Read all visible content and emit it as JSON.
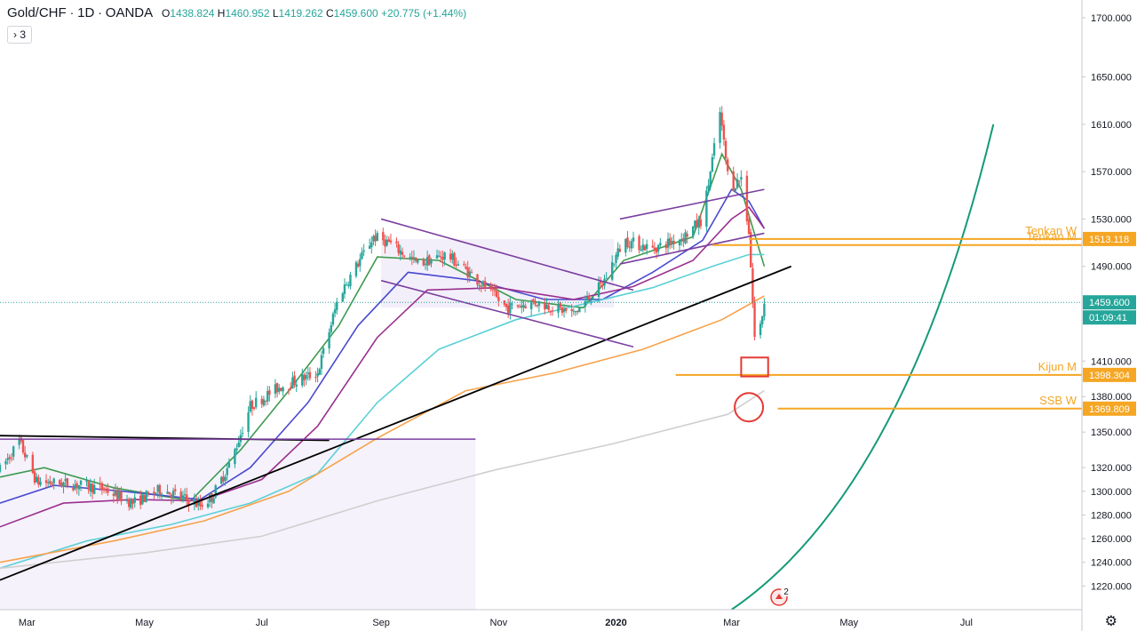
{
  "header": {
    "symbol": "Gold/CHF",
    "interval": "1D",
    "source": "OANDA",
    "open_label": "O",
    "open": "1438.824",
    "high_label": "H",
    "high": "1460.952",
    "low_label": "L",
    "low": "1419.262",
    "close_label": "C",
    "close": "1459.600",
    "change": "+20.775 (+1.44%)"
  },
  "indicator_toggle": {
    "arrow": "›",
    "count": "3"
  },
  "badge_count": "2",
  "colors": {
    "up": "#26a69a",
    "down": "#ef5350",
    "ma_green": "#3d9a4f",
    "ma_blue": "#4a4ad0",
    "ma_purple": "#9a2f8f",
    "ma_cyan": "#5bd0d6",
    "ma_orange": "#f7a24a",
    "ma_gray": "#cfcfcf",
    "level_orange": "#f5a623",
    "parabola": "#159a77",
    "channel": "#7b3fa0",
    "trend": "#000000",
    "marker": "#e53935",
    "price_line": "#26a69a"
  },
  "chart_data": {
    "type": "candlestick",
    "y_axis": {
      "min": 1200,
      "max": 1715,
      "ticks": [
        1700,
        1650,
        1610,
        1570,
        1530,
        1490,
        1460,
        1410,
        1380,
        1350,
        1320,
        1300,
        1280,
        1260,
        1240,
        1220
      ],
      "tick_labels": [
        "1700.000",
        "1650.000",
        "1610.000",
        "1570.000",
        "1530.000",
        "1490.000",
        "",
        "1410.000",
        "1380.000",
        "1350.000",
        "1320.000",
        "1300.000",
        "1280.000",
        "1260.000",
        "1240.000",
        "1220.000"
      ]
    },
    "x_axis": {
      "start": "2019-02-15",
      "end": "2020-08-30",
      "ticks": [
        {
          "date": "2019-03-01",
          "label": "Mar"
        },
        {
          "date": "2019-05-01",
          "label": "May"
        },
        {
          "date": "2019-07-01",
          "label": "Jul"
        },
        {
          "date": "2019-09-01",
          "label": "Sep"
        },
        {
          "date": "2019-11-01",
          "label": "Nov"
        },
        {
          "date": "2020-01-01",
          "label": "2020"
        },
        {
          "date": "2020-03-01",
          "label": "Mar"
        },
        {
          "date": "2020-05-01",
          "label": "May"
        },
        {
          "date": "2020-07-01",
          "label": "Jul"
        }
      ]
    },
    "price_path": [
      [
        "2019-02-15",
        1318
      ],
      [
        "2019-02-25",
        1342
      ],
      [
        "2019-03-06",
        1308
      ],
      [
        "2019-03-25",
        1306
      ],
      [
        "2019-04-10",
        1302
      ],
      [
        "2019-04-25",
        1290
      ],
      [
        "2019-05-10",
        1302
      ],
      [
        "2019-05-30",
        1288
      ],
      [
        "2019-06-05",
        1295
      ],
      [
        "2019-06-15",
        1325
      ],
      [
        "2019-06-25",
        1372
      ],
      [
        "2019-07-10",
        1388
      ],
      [
        "2019-07-30",
        1400
      ],
      [
        "2019-08-10",
        1465
      ],
      [
        "2019-08-28",
        1515
      ],
      [
        "2019-09-05",
        1510
      ],
      [
        "2019-09-20",
        1492
      ],
      [
        "2019-10-05",
        1500
      ],
      [
        "2019-10-20",
        1480
      ],
      [
        "2019-11-05",
        1455
      ],
      [
        "2019-11-20",
        1460
      ],
      [
        "2019-12-10",
        1450
      ],
      [
        "2019-12-25",
        1475
      ],
      [
        "2020-01-05",
        1512
      ],
      [
        "2020-01-20",
        1505
      ],
      [
        "2020-02-05",
        1515
      ],
      [
        "2020-02-15",
        1530
      ],
      [
        "2020-02-24",
        1620
      ],
      [
        "2020-02-29",
        1555
      ],
      [
        "2020-03-06",
        1565
      ],
      [
        "2020-03-10",
        1520
      ],
      [
        "2020-03-13",
        1430
      ],
      [
        "2020-03-16",
        1440
      ],
      [
        "2020-03-18",
        1459.6
      ]
    ],
    "moving_averages": [
      {
        "color_key": "ma_green",
        "points": [
          [
            "2019-02-15",
            1312
          ],
          [
            "2019-03-10",
            1320
          ],
          [
            "2019-04-15",
            1303
          ],
          [
            "2019-05-25",
            1292
          ],
          [
            "2019-06-20",
            1335
          ],
          [
            "2019-07-15",
            1385
          ],
          [
            "2019-08-10",
            1440
          ],
          [
            "2019-08-30",
            1498
          ],
          [
            "2019-10-01",
            1495
          ],
          [
            "2019-11-10",
            1462
          ],
          [
            "2019-12-15",
            1455
          ],
          [
            "2020-01-05",
            1495
          ],
          [
            "2020-02-10",
            1515
          ],
          [
            "2020-02-25",
            1585
          ],
          [
            "2020-03-06",
            1555
          ],
          [
            "2020-03-18",
            1490
          ]
        ]
      },
      {
        "color_key": "ma_blue",
        "points": [
          [
            "2019-02-15",
            1290
          ],
          [
            "2019-03-15",
            1305
          ],
          [
            "2019-04-20",
            1300
          ],
          [
            "2019-05-30",
            1293
          ],
          [
            "2019-06-25",
            1320
          ],
          [
            "2019-07-25",
            1375
          ],
          [
            "2019-08-20",
            1440
          ],
          [
            "2019-09-15",
            1485
          ],
          [
            "2019-10-20",
            1478
          ],
          [
            "2019-11-25",
            1462
          ],
          [
            "2019-12-25",
            1462
          ],
          [
            "2020-01-20",
            1485
          ],
          [
            "2020-02-15",
            1512
          ],
          [
            "2020-03-01",
            1555
          ],
          [
            "2020-03-10",
            1545
          ],
          [
            "2020-03-18",
            1522
          ]
        ]
      },
      {
        "color_key": "ma_purple",
        "points": [
          [
            "2019-02-15",
            1270
          ],
          [
            "2019-03-20",
            1290
          ],
          [
            "2019-04-25",
            1293
          ],
          [
            "2019-05-30",
            1292
          ],
          [
            "2019-07-01",
            1310
          ],
          [
            "2019-07-30",
            1355
          ],
          [
            "2019-08-30",
            1430
          ],
          [
            "2019-09-25",
            1470
          ],
          [
            "2019-11-01",
            1472
          ],
          [
            "2019-12-10",
            1462
          ],
          [
            "2020-01-10",
            1473
          ],
          [
            "2020-02-10",
            1495
          ],
          [
            "2020-03-01",
            1530
          ],
          [
            "2020-03-10",
            1540
          ],
          [
            "2020-03-18",
            1522
          ]
        ]
      },
      {
        "color_key": "ma_cyan",
        "points": [
          [
            "2019-02-15",
            1235
          ],
          [
            "2019-04-01",
            1258
          ],
          [
            "2019-05-15",
            1272
          ],
          [
            "2019-06-25",
            1290
          ],
          [
            "2019-07-30",
            1315
          ],
          [
            "2019-08-30",
            1375
          ],
          [
            "2019-10-01",
            1420
          ],
          [
            "2019-11-10",
            1445
          ],
          [
            "2019-12-20",
            1460
          ],
          [
            "2020-01-20",
            1472
          ],
          [
            "2020-02-20",
            1490
          ],
          [
            "2020-03-10",
            1500
          ],
          [
            "2020-03-18",
            1500
          ]
        ]
      },
      {
        "color_key": "ma_orange",
        "points": [
          [
            "2019-02-15",
            1240
          ],
          [
            "2019-04-15",
            1258
          ],
          [
            "2019-06-01",
            1275
          ],
          [
            "2019-07-15",
            1300
          ],
          [
            "2019-08-30",
            1345
          ],
          [
            "2019-10-15",
            1385
          ],
          [
            "2019-11-30",
            1400
          ],
          [
            "2020-01-15",
            1420
          ],
          [
            "2020-02-25",
            1445
          ],
          [
            "2020-03-18",
            1465
          ]
        ]
      },
      {
        "color_key": "ma_gray",
        "points": [
          [
            "2019-02-15",
            1235
          ],
          [
            "2019-05-01",
            1248
          ],
          [
            "2019-07-01",
            1262
          ],
          [
            "2019-08-30",
            1292
          ],
          [
            "2019-10-30",
            1318
          ],
          [
            "2019-12-30",
            1340
          ],
          [
            "2020-02-28",
            1365
          ],
          [
            "2020-03-18",
            1385
          ]
        ]
      }
    ],
    "range_box": {
      "start": "2019-02-15",
      "end": "2019-10-20",
      "top": 1344,
      "bottom": 1200
    },
    "channel_box": {
      "start": "2019-09-01",
      "end": "2019-12-31",
      "top": 1513,
      "bottom": 1455
    },
    "lines": [
      {
        "name_key": "trend",
        "from": [
          "2019-02-15",
          1225
        ],
        "to": [
          "2020-04-01",
          1490
        ]
      },
      {
        "name_key": "resistance",
        "from": [
          "2019-02-15",
          1347
        ],
        "to": [
          "2019-08-05",
          1343
        ]
      },
      {
        "name_key": "range_top",
        "from": [
          "2019-02-15",
          1344
        ],
        "to": [
          "2019-10-20",
          1344
        ]
      },
      {
        "name_key": "ch_upper",
        "from": [
          "2019-09-01",
          1530
        ],
        "to": [
          "2020-01-10",
          1470
        ]
      },
      {
        "name_key": "ch_lower",
        "from": [
          "2019-09-01",
          1478
        ],
        "to": [
          "2020-01-10",
          1422
        ]
      },
      {
        "name_key": "ch2_upper",
        "from": [
          "2020-01-03",
          1530
        ],
        "to": [
          "2020-03-18",
          1555
        ]
      },
      {
        "name_key": "ch2_lower",
        "from": [
          "2020-01-03",
          1492
        ],
        "to": [
          "2020-03-18",
          1518
        ]
      }
    ],
    "levels": [
      {
        "label": "Tenkan W",
        "price": 1513.118,
        "from": "2020-03-10",
        "price_label": "1513.118"
      },
      {
        "label": "Tenkan M",
        "price": 1508,
        "from": "2020-02-20",
        "price_label": ""
      },
      {
        "label": "Kijun M",
        "price": 1398.304,
        "from": "2020-02-01",
        "price_label": "1398.304"
      },
      {
        "label": "SSB W",
        "price": 1369.809,
        "from": "2020-03-25",
        "price_label": "1369.809"
      }
    ],
    "last_price": {
      "value": 1459.6,
      "label": "1459.600",
      "countdown": "01:09:41"
    },
    "parabola": {
      "from": [
        "2020-03-01",
        1200
      ],
      "ctrl": [
        "2020-05-30",
        1300
      ],
      "to": [
        "2020-07-15",
        1610
      ]
    },
    "markers": [
      {
        "shape": "rect",
        "date": "2020-03-13",
        "price": 1398,
        "half_w_days": 7,
        "top": 1413,
        "bottom": 1397
      },
      {
        "shape": "circle",
        "date": "2020-03-10",
        "price": 1371,
        "r_price": 12
      }
    ]
  }
}
